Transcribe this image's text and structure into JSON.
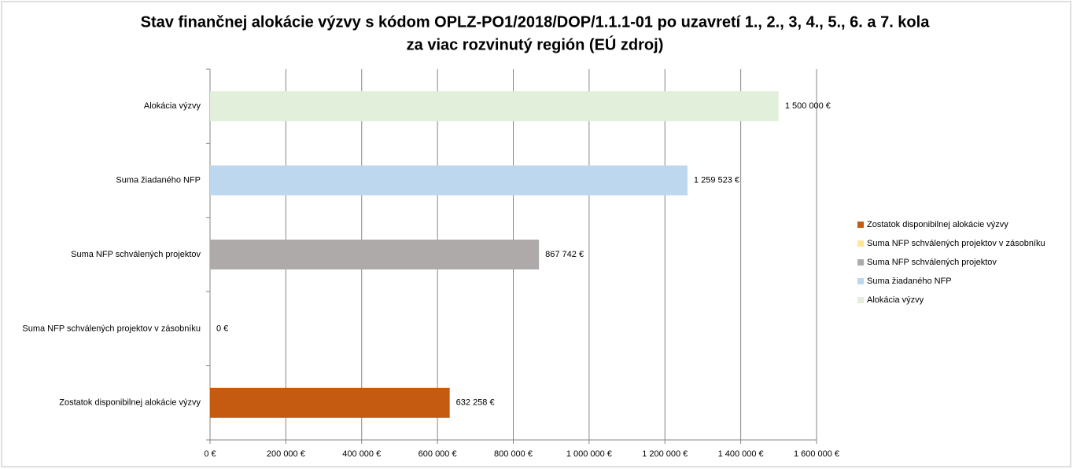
{
  "chart_data": {
    "type": "bar",
    "orientation": "horizontal",
    "title": [
      "Stav finančnej alokácie výzvy s kódom OPLZ-PO1/2018/DOP/1.1.1-01 po uzavretí 1., 2., 3, 4., 5., 6. a 7. kola",
      "za viac rozvinutý región (EÚ zdroj)"
    ],
    "categories": [
      "Alokácia výzvy",
      "Suma žiadaného NFP",
      "Suma NFP schválených projektov",
      "Suma NFP schválených projektov v zásobníku",
      "Zostatok disponibilnej alokácie výzvy"
    ],
    "values": [
      1500000,
      1259523,
      867742,
      0,
      632258
    ],
    "value_labels": [
      "1 500 000 €",
      "1 259 523 €",
      "867 742 €",
      "0 €",
      "632 258 €"
    ],
    "colors": [
      "#e2efda",
      "#bdd7ee",
      "#aeaaaa",
      "#ffe699",
      "#c55a11"
    ],
    "xlim": [
      0,
      1600000
    ],
    "xticks": [
      {
        "value": 0,
        "label": "0 €"
      },
      {
        "value": 200000,
        "label": "200 000 €"
      },
      {
        "value": 400000,
        "label": "400 000 €"
      },
      {
        "value": 600000,
        "label": "600 000 €"
      },
      {
        "value": 800000,
        "label": "800 000 €"
      },
      {
        "value": 1000000,
        "label": "1 000 000 €"
      },
      {
        "value": 1200000,
        "label": "1 200 000 €"
      },
      {
        "value": 1400000,
        "label": "1 400 000 €"
      },
      {
        "value": 1600000,
        "label": "1 600 000 €"
      }
    ],
    "grid": true,
    "legend": "right"
  }
}
